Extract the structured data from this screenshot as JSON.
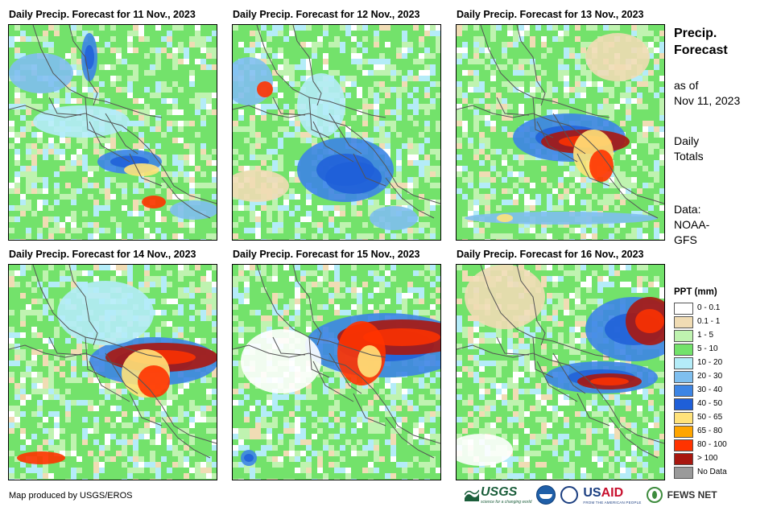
{
  "panels": [
    {
      "title": "Daily Precip. Forecast for 11 Nov., 2023"
    },
    {
      "title": "Daily Precip. Forecast for 12 Nov., 2023"
    },
    {
      "title": "Daily Precip. Forecast for 13 Nov., 2023"
    },
    {
      "title": "Daily Precip. Forecast for 14 Nov., 2023"
    },
    {
      "title": "Daily Precip. Forecast for 15 Nov., 2023"
    },
    {
      "title": "Daily Precip. Forecast for 16 Nov., 2023"
    }
  ],
  "side": {
    "title": "Precip. Forecast",
    "asof_line1": "as of",
    "asof_line2": "Nov 11, 2023",
    "totals_line1": "Daily",
    "totals_line2": "Totals",
    "data_line1": "Data:",
    "data_line2": "NOAA-",
    "data_line3": "GFS"
  },
  "legend": {
    "title": "PPT (mm)",
    "items": [
      {
        "label": "0 - 0.1",
        "color": "#ffffff"
      },
      {
        "label": "0.1 - 1",
        "color": "#f0dcb4"
      },
      {
        "label": "1 - 5",
        "color": "#bff3b0"
      },
      {
        "label": "5 - 10",
        "color": "#73e26b"
      },
      {
        "label": "10 - 20",
        "color": "#b4ecf8"
      },
      {
        "label": "20 - 30",
        "color": "#7fbfef"
      },
      {
        "label": "30 - 40",
        "color": "#3d85e5"
      },
      {
        "label": "40 - 50",
        "color": "#1f5fd8"
      },
      {
        "label": "50 - 65",
        "color": "#ffe27a"
      },
      {
        "label": "65 - 80",
        "color": "#ffa500"
      },
      {
        "label": "80 - 100",
        "color": "#ff3300"
      },
      {
        "label": "> 100",
        "color": "#a8170f"
      },
      {
        "label": "No Data",
        "color": "#9a9a9a"
      }
    ]
  },
  "credit": "Map produced by USGS/EROS",
  "logos": {
    "usgs": "USGS",
    "usgs_tagline": "science for a changing world",
    "usaid_us": "US",
    "usaid_aid": "AID",
    "usaid_tagline": "FROM THE AMERICAN PEOPLE",
    "fews": "FEWS NET"
  }
}
